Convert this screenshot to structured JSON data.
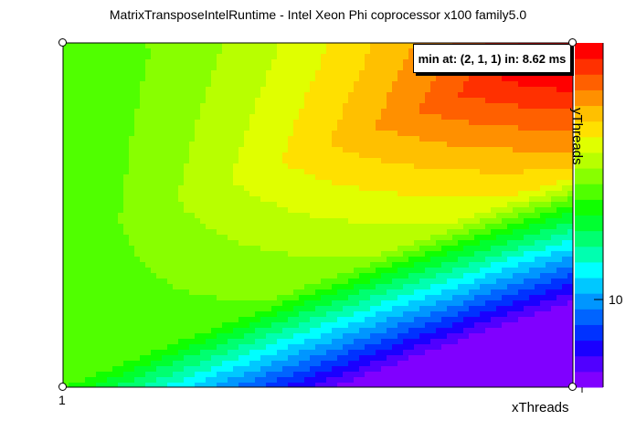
{
  "title": "MatrixTransposeIntelRuntime - Intel Xeon Phi coprocessor x100 family5.0",
  "stats": {
    "text": "min at: (2, 1, 1) in: 8.62 ms"
  },
  "chart_data": {
    "type": "heatmap",
    "title": "MatrixTransposeIntelRuntime - Intel Xeon Phi coprocessor x100 family5.0",
    "xlabel": "xThreads",
    "ylabel": "yThreads",
    "x_tick_labels": [
      "1"
    ],
    "y_tick_labels": [
      "10"
    ],
    "palette": [
      "#8000ff",
      "#5000ff",
      "#1a00ff",
      "#0032ff",
      "#0064ff",
      "#0096ff",
      "#00c8ff",
      "#00ffff",
      "#00ffb0",
      "#00ff70",
      "#00ff30",
      "#10ff00",
      "#50ff00",
      "#88ff00",
      "#b8ff00",
      "#e0ff00",
      "#ffe000",
      "#ffc000",
      "#ff9000",
      "#ff6000",
      "#ff3000",
      "#ff0000"
    ],
    "min_point": {
      "x": 2,
      "y": 1,
      "z": 1,
      "value_ms": 8.62
    },
    "colorbar": true,
    "grid": false
  }
}
